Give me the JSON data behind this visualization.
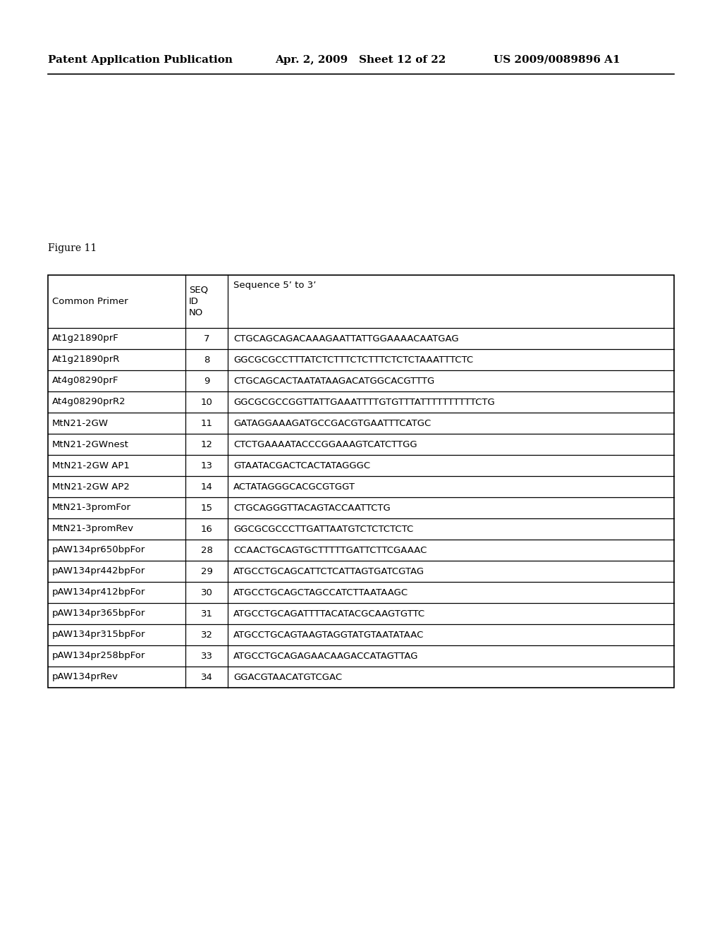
{
  "header_left": "Patent Application Publication",
  "header_mid": "Apr. 2, 2009   Sheet 12 of 22",
  "header_right": "US 2009/0089896 A1",
  "figure_label": "Figure 11",
  "rows": [
    [
      "Common Primer",
      "SEQ\nID\nNO",
      "Sequence 5’ to 3’"
    ],
    [
      "At1g21890prF",
      "7",
      "CTGCAGCAGACAAAGAATTATTGGAAAACAATGAG"
    ],
    [
      "At1g21890prR",
      "8",
      "GGCGCGCCTTTATCTCTTTCTCTTTCTCTCTAAATTTCTC"
    ],
    [
      "At4g08290prF",
      "9",
      "CTGCAGCACTAATATAAGACATGGCACGTTTG"
    ],
    [
      "At4g08290prR2",
      "10",
      "GGCGCGCCGGTTATTGAAATTTTGTGTTTATTTTTTTTTTCTG"
    ],
    [
      "MtN21-2GW",
      "11",
      "GATAGGAAAGATGCCGACGTGAATTTCATGC"
    ],
    [
      "MtN21-2GWnest",
      "12",
      "CTCTGAAAATACCCGGAAAGTCATCTTGG"
    ],
    [
      "MtN21-2GW AP1",
      "13",
      "GTAATACGACTCACTATAGGGC"
    ],
    [
      "MtN21-2GW AP2",
      "14",
      "ACTATAGGGCACGCGTGGT"
    ],
    [
      "MtN21-3promFor",
      "15",
      "CTGCAGGGTTACAGTACCAATTCTG"
    ],
    [
      "MtN21-3promRev",
      "16",
      "GGCGCGCCCTTGATTAATGTCTCTCTCTC"
    ],
    [
      "pAW134pr650bpFor",
      "28",
      "CCAACTGCAGTGCTTTTTGATTCTTCGAAAC"
    ],
    [
      "pAW134pr442bpFor",
      "29",
      "ATGCCTGCAGCATTCTCATTAGTGATCGTAG"
    ],
    [
      "pAW134pr412bpFor",
      "30",
      "ATGCCTGCAGCTAGCCATCTTAATAAGC"
    ],
    [
      "pAW134pr365bpFor",
      "31",
      "ATGCCTGCAGATTTTACATACGCAAGTGTTC"
    ],
    [
      "pAW134pr315bpFor",
      "32",
      "ATGCCTGCAGTAAGTAGGTATGTAATATAAC"
    ],
    [
      "pAW134pr258bpFor",
      "33",
      "ATGCCTGCAGAGAACAAGACCATAGTTAG"
    ],
    [
      "pAW134prRev",
      "34",
      "GGACGTAACATGTCGAC"
    ]
  ],
  "bg_color": "#ffffff",
  "text_color": "#000000",
  "border_color": "#000000"
}
